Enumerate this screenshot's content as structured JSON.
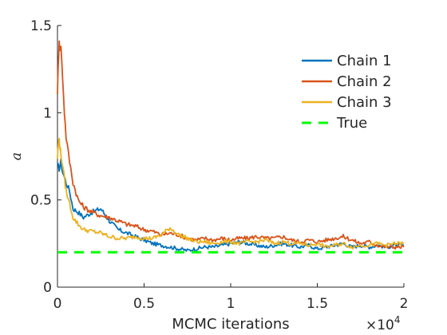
{
  "chart_data": {
    "type": "line",
    "title": "",
    "xlabel": "MCMC iterations",
    "ylabel": "a",
    "x_exponent_base": "×10",
    "x_exponent_power": "4",
    "xlim": [
      0,
      20000
    ],
    "ylim": [
      0,
      1.5
    ],
    "x_ticks": [
      0,
      5000,
      10000,
      15000,
      20000
    ],
    "x_tick_labels": [
      "0",
      "0.5",
      "1",
      "1.5",
      "2"
    ],
    "y_ticks": [
      0,
      0.5,
      1,
      1.5
    ],
    "y_tick_labels": [
      "0",
      "0.5",
      "1",
      "1.5"
    ],
    "grid": false,
    "legend_position": "top-right",
    "series": [
      {
        "name": "Chain 1",
        "color": "#0072BD",
        "style": "solid",
        "x": [
          0,
          100,
          200,
          300,
          500,
          700,
          900,
          1200,
          1500,
          2000,
          2500,
          3000,
          3500,
          4000,
          4500,
          5000,
          5500,
          6000,
          6500,
          7000,
          7500,
          8000,
          8500,
          9000,
          9500,
          10000,
          10500,
          11000,
          11500,
          12000,
          12500,
          13000,
          13500,
          14000,
          14500,
          15000,
          15500,
          16000,
          16500,
          17000,
          17500,
          18000,
          18500,
          19000,
          19500,
          20000
        ],
        "y": [
          0.7,
          0.68,
          0.72,
          0.66,
          0.6,
          0.55,
          0.45,
          0.43,
          0.4,
          0.43,
          0.45,
          0.38,
          0.33,
          0.31,
          0.29,
          0.27,
          0.25,
          0.24,
          0.23,
          0.22,
          0.21,
          0.22,
          0.23,
          0.23,
          0.24,
          0.25,
          0.26,
          0.25,
          0.24,
          0.23,
          0.24,
          0.25,
          0.24,
          0.23,
          0.24,
          0.22,
          0.23,
          0.24,
          0.25,
          0.23,
          0.24,
          0.23,
          0.24,
          0.23,
          0.24,
          0.24
        ]
      },
      {
        "name": "Chain 2",
        "color": "#D95319",
        "style": "solid",
        "x": [
          0,
          50,
          100,
          150,
          200,
          300,
          400,
          500,
          700,
          900,
          1200,
          1500,
          2000,
          2500,
          3000,
          3500,
          4000,
          4500,
          5000,
          5500,
          6000,
          6500,
          7000,
          7500,
          8000,
          8500,
          9000,
          9500,
          10000,
          10500,
          11000,
          11500,
          12000,
          12500,
          13000,
          13500,
          14000,
          14500,
          15000,
          15500,
          16000,
          16500,
          17000,
          17500,
          18000,
          18500,
          19000,
          19500,
          20000
        ],
        "y": [
          1.12,
          1.28,
          1.42,
          1.35,
          1.38,
          1.2,
          1.0,
          0.86,
          0.72,
          0.6,
          0.5,
          0.46,
          0.43,
          0.41,
          0.4,
          0.38,
          0.36,
          0.35,
          0.33,
          0.32,
          0.3,
          0.31,
          0.3,
          0.28,
          0.27,
          0.28,
          0.27,
          0.28,
          0.27,
          0.28,
          0.28,
          0.29,
          0.28,
          0.28,
          0.29,
          0.27,
          0.26,
          0.27,
          0.26,
          0.27,
          0.28,
          0.29,
          0.27,
          0.25,
          0.26,
          0.24,
          0.23,
          0.23,
          0.23
        ]
      },
      {
        "name": "Chain 3",
        "color": "#EDB120",
        "style": "solid",
        "x": [
          0,
          50,
          100,
          150,
          200,
          300,
          400,
          500,
          700,
          900,
          1200,
          1500,
          2000,
          2500,
          3000,
          3500,
          4000,
          4500,
          5000,
          5500,
          6000,
          6500,
          7000,
          7500,
          8000,
          8500,
          9000,
          9500,
          10000,
          10500,
          11000,
          11500,
          12000,
          12500,
          13000,
          13500,
          14000,
          14500,
          15000,
          15500,
          16000,
          16500,
          17000,
          17500,
          18000,
          18500,
          19000,
          19500,
          20000
        ],
        "y": [
          0.74,
          0.82,
          0.85,
          0.8,
          0.76,
          0.7,
          0.62,
          0.55,
          0.48,
          0.4,
          0.36,
          0.33,
          0.32,
          0.31,
          0.29,
          0.28,
          0.28,
          0.29,
          0.28,
          0.28,
          0.3,
          0.34,
          0.3,
          0.28,
          0.26,
          0.26,
          0.25,
          0.26,
          0.26,
          0.25,
          0.26,
          0.26,
          0.27,
          0.25,
          0.26,
          0.25,
          0.25,
          0.24,
          0.25,
          0.23,
          0.24,
          0.25,
          0.23,
          0.24,
          0.24,
          0.25,
          0.24,
          0.25,
          0.25
        ]
      },
      {
        "name": "True",
        "color": "#00FF00",
        "style": "dashed",
        "x": [
          0,
          20000
        ],
        "y": [
          0.2,
          0.2
        ]
      }
    ]
  }
}
